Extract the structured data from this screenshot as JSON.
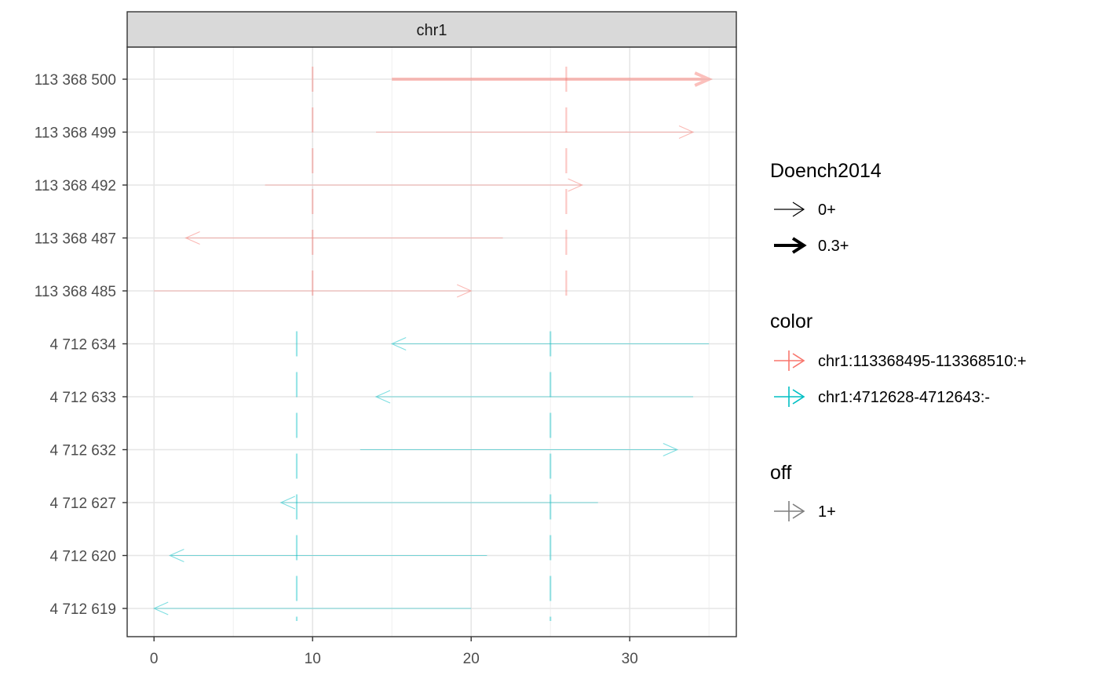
{
  "chart_data": {
    "type": "line",
    "facet": "chr1",
    "xlim": [
      -1.6,
      36.6
    ],
    "x_ticks": [
      0,
      10,
      20,
      30
    ],
    "x_minor_ticks": [
      5,
      15,
      25,
      35
    ],
    "y_categories": [
      "113 368 500",
      "113 368 499",
      "113 368 492",
      "113 368 487",
      "113 368 485",
      "4 712 634",
      "4 712 633",
      "4 712 632",
      "4 712 627",
      "4 712 620",
      "4 712 619"
    ],
    "grid": true,
    "legend_position": "right",
    "colors": {
      "red": "#F8766D",
      "teal": "#00BFC4",
      "grey": "#7f7f7f"
    },
    "arrows": [
      {
        "y": "113 368 500",
        "from": 15,
        "to": 35,
        "group": "red",
        "doench": "0.3+"
      },
      {
        "y": "113 368 499",
        "from": 14,
        "to": 34,
        "group": "red",
        "doench": "0+"
      },
      {
        "y": "113 368 492",
        "from": 7,
        "to": 27,
        "group": "red",
        "doench": "0+"
      },
      {
        "y": "113 368 487",
        "from": 22,
        "to": 2,
        "group": "red",
        "doench": "0+"
      },
      {
        "y": "113 368 485",
        "from": 0,
        "to": 20,
        "group": "red",
        "doench": "0+"
      },
      {
        "y": "4 712 634",
        "from": 35,
        "to": 15,
        "group": "teal",
        "doench": "0+"
      },
      {
        "y": "4 712 633",
        "from": 34,
        "to": 14,
        "group": "teal",
        "doench": "0+"
      },
      {
        "y": "4 712 632",
        "from": 13,
        "to": 33,
        "group": "teal",
        "doench": "0+"
      },
      {
        "y": "4 712 627",
        "from": 28,
        "to": 8,
        "group": "teal",
        "doench": "0+"
      },
      {
        "y": "4 712 620",
        "from": 21,
        "to": 1,
        "group": "teal",
        "doench": "0+"
      },
      {
        "y": "4 712 619",
        "from": 20,
        "to": 0,
        "group": "teal",
        "doench": "0+"
      }
    ],
    "vlines": [
      {
        "x": 10,
        "group": "red",
        "y_from": "113 368 485",
        "y_to": "113 368 500"
      },
      {
        "x": 26,
        "group": "red",
        "y_from": "113 368 485",
        "y_to": "113 368 500"
      },
      {
        "x": 9,
        "group": "teal",
        "y_from": "4 712 619",
        "y_to": "4 712 634"
      },
      {
        "x": 25,
        "group": "teal",
        "y_from": "4 712 619",
        "y_to": "4 712 634"
      }
    ],
    "legend": {
      "doench": {
        "title": "Doench2014",
        "items": [
          {
            "label": "0+",
            "weight": "thin"
          },
          {
            "label": "0.3+",
            "weight": "thick"
          }
        ]
      },
      "color": {
        "title": "color",
        "items": [
          {
            "label": "chr1:113368495-113368510:+",
            "group": "red"
          },
          {
            "label": "chr1:4712628-4712643:-",
            "group": "teal"
          }
        ]
      },
      "off": {
        "title": "off",
        "items": [
          {
            "label": "1+",
            "group": "grey"
          }
        ]
      }
    }
  }
}
